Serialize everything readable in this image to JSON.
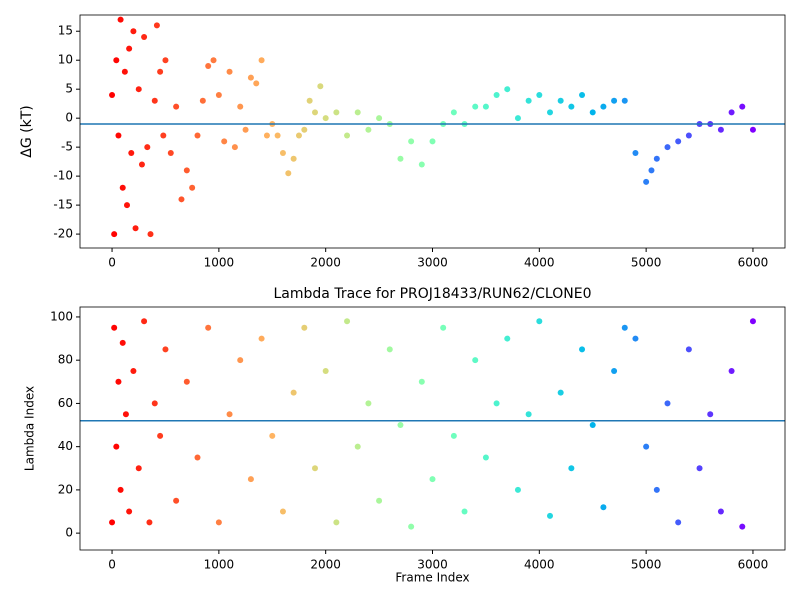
{
  "chart_data": [
    {
      "type": "scatter",
      "ylabel": "ΔG (kT)",
      "colormap": "rainbow_r",
      "hline": -1,
      "hline_color": "#1f77b4",
      "xlim": [
        -300,
        6300
      ],
      "ylim": [
        -22.4,
        17.8
      ],
      "xticks": [
        0,
        1000,
        2000,
        3000,
        4000,
        5000,
        6000
      ],
      "yticks": [
        -20,
        -15,
        -10,
        -5,
        0,
        5,
        10,
        15
      ],
      "x": [
        0,
        20,
        40,
        60,
        80,
        100,
        120,
        140,
        160,
        180,
        200,
        220,
        250,
        280,
        300,
        330,
        360,
        400,
        420,
        450,
        480,
        500,
        550,
        600,
        650,
        700,
        750,
        800,
        850,
        900,
        950,
        1000,
        1050,
        1100,
        1150,
        1200,
        1250,
        1300,
        1350,
        1400,
        1450,
        1500,
        1550,
        1600,
        1650,
        1700,
        1750,
        1800,
        1850,
        1900,
        1950,
        2000,
        2100,
        2200,
        2300,
        2400,
        2500,
        2600,
        2700,
        2800,
        2900,
        3000,
        3100,
        3200,
        3300,
        3400,
        3500,
        3600,
        3700,
        3800,
        3900,
        4000,
        4100,
        4200,
        4300,
        4400,
        4500,
        4600,
        4700,
        4800,
        4900,
        5000,
        5050,
        5100,
        5200,
        5300,
        5400,
        5500,
        5600,
        5700,
        5800,
        5900,
        6000
      ],
      "values": [
        4,
        -20,
        10,
        -3,
        17,
        -12,
        8,
        -15,
        12,
        -6,
        15,
        -19,
        5,
        -8,
        14,
        -5,
        -20,
        3,
        16,
        8,
        -3,
        10,
        -6,
        2,
        -14,
        -9,
        -12,
        -3,
        3,
        9,
        10,
        4,
        -4,
        8,
        -5,
        2,
        -2,
        7,
        6,
        10,
        -3,
        -1,
        -3,
        -6,
        -9.5,
        -7,
        -3,
        -2,
        3,
        1,
        5.5,
        0,
        1,
        -3,
        1,
        -2,
        0,
        -1,
        -7,
        -4,
        -8,
        -4,
        -1,
        1,
        -1,
        2,
        2,
        4,
        5,
        0,
        3,
        4,
        1,
        3,
        2,
        4,
        1,
        2,
        3,
        3,
        -6,
        -11,
        -9,
        -7,
        -5,
        -4,
        -3,
        -1,
        -1,
        -2,
        1,
        2,
        -2
      ]
    },
    {
      "type": "scatter",
      "title": "Lambda Trace for PROJ18433/RUN62/CLONE0",
      "xlabel": "Frame Index",
      "ylabel": "Lambda Index",
      "colormap": "rainbow_r",
      "hline": 52,
      "hline_color": "#1f77b4",
      "xlim": [
        -300,
        6300
      ],
      "ylim": [
        -7.8,
        104.6
      ],
      "xticks": [
        0,
        1000,
        2000,
        3000,
        4000,
        5000,
        6000
      ],
      "yticks": [
        0,
        20,
        40,
        60,
        80,
        100
      ],
      "x": [
        0,
        20,
        40,
        60,
        80,
        100,
        130,
        160,
        200,
        250,
        300,
        350,
        400,
        450,
        500,
        600,
        700,
        800,
        900,
        1000,
        1100,
        1200,
        1300,
        1400,
        1500,
        1600,
        1700,
        1800,
        1900,
        2000,
        2100,
        2200,
        2300,
        2400,
        2500,
        2600,
        2700,
        2800,
        2900,
        3000,
        3100,
        3200,
        3300,
        3400,
        3500,
        3600,
        3700,
        3800,
        3900,
        4000,
        4100,
        4200,
        4300,
        4400,
        4500,
        4600,
        4700,
        4800,
        4900,
        5000,
        5100,
        5200,
        5300,
        5400,
        5500,
        5600,
        5700,
        5800,
        5900,
        6000
      ],
      "values": [
        5,
        95,
        40,
        70,
        20,
        88,
        55,
        10,
        75,
        30,
        98,
        5,
        60,
        45,
        85,
        15,
        70,
        35,
        95,
        5,
        55,
        80,
        25,
        90,
        45,
        10,
        65,
        95,
        30,
        75,
        5,
        98,
        40,
        60,
        15,
        85,
        50,
        3,
        70,
        25,
        95,
        45,
        10,
        80,
        35,
        60,
        90,
        20,
        55,
        98,
        8,
        65,
        30,
        85,
        50,
        12,
        75,
        95,
        90,
        40,
        20,
        60,
        5,
        85,
        30,
        55,
        10,
        75,
        3,
        98
      ]
    }
  ]
}
